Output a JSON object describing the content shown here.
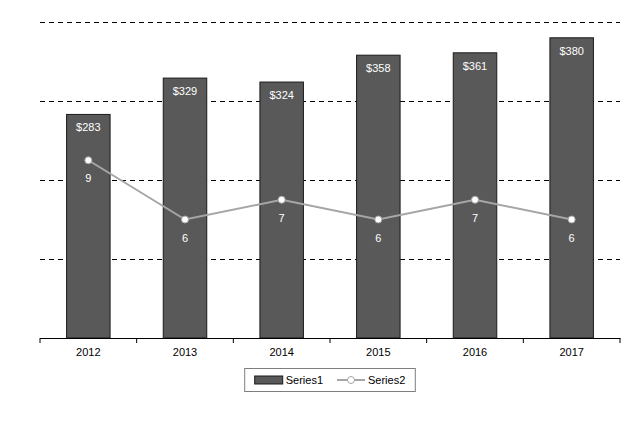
{
  "chart_data": {
    "type": "bar",
    "categories": [
      "2012",
      "2013",
      "2014",
      "2015",
      "2016",
      "2017"
    ],
    "series": [
      {
        "name": "Series1",
        "type": "bar",
        "color": "#595959",
        "values": [
          283,
          329,
          324,
          358,
          361,
          380
        ],
        "value_labels": [
          "$283",
          "$329",
          "$324",
          "$358",
          "$361",
          "$380"
        ]
      },
      {
        "name": "Series2",
        "type": "line",
        "color": "#a6a6a6",
        "marker": "circle",
        "axis": "y2",
        "values": [
          9,
          6,
          7,
          6,
          7,
          6
        ]
      }
    ],
    "ylim": [
      0,
      400
    ],
    "yticks": [
      0,
      100,
      200,
      300,
      400
    ],
    "y2lim": [
      0,
      16
    ],
    "grid": true,
    "legend": "bottom",
    "data_labels": true,
    "tick_labels": "x"
  }
}
